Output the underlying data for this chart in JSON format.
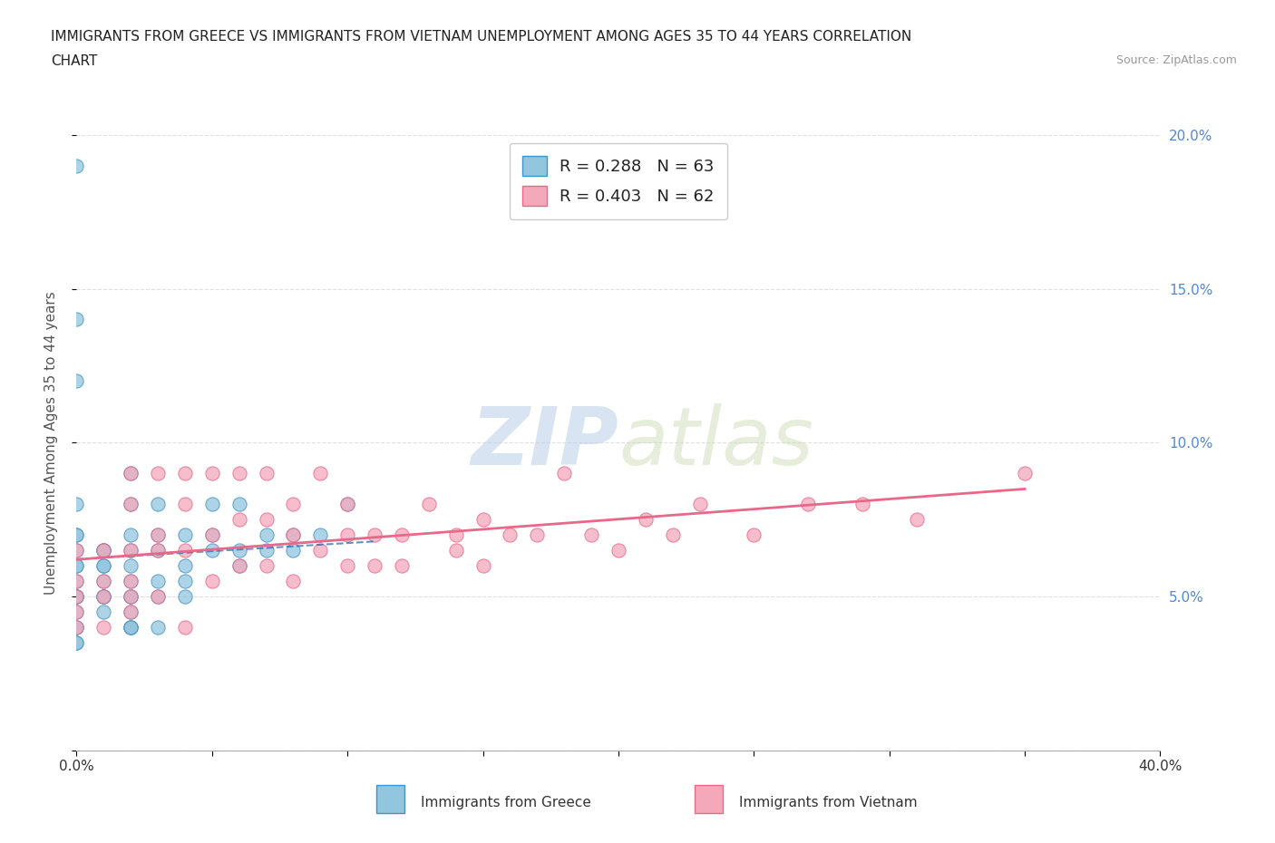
{
  "title_line1": "IMMIGRANTS FROM GREECE VS IMMIGRANTS FROM VIETNAM UNEMPLOYMENT AMONG AGES 35 TO 44 YEARS CORRELATION",
  "title_line2": "CHART",
  "source_text": "Source: ZipAtlas.com",
  "ylabel": "Unemployment Among Ages 35 to 44 years",
  "xlim": [
    0.0,
    0.4
  ],
  "ylim": [
    0.0,
    0.2
  ],
  "xticks": [
    0.0,
    0.05,
    0.1,
    0.15,
    0.2,
    0.25,
    0.3,
    0.35,
    0.4
  ],
  "yticks": [
    0.0,
    0.05,
    0.1,
    0.15,
    0.2
  ],
  "yticklabels_right": [
    "",
    "5.0%",
    "10.0%",
    "15.0%",
    "20.0%"
  ],
  "greece_color": "#92c5de",
  "greece_edge_color": "#4393c3",
  "vietnam_color": "#f4a9bb",
  "vietnam_edge_color": "#e8688a",
  "trend_greece_color": "#2166ac",
  "trend_vietnam_color": "#e8688a",
  "R_greece": 0.288,
  "N_greece": 63,
  "R_vietnam": 0.403,
  "N_vietnam": 62,
  "watermark": "ZIPatlas",
  "greece_x": [
    0.0,
    0.0,
    0.0,
    0.0,
    0.0,
    0.0,
    0.0,
    0.0,
    0.0,
    0.0,
    0.0,
    0.0,
    0.0,
    0.0,
    0.0,
    0.0,
    0.0,
    0.0,
    0.0,
    0.01,
    0.01,
    0.01,
    0.01,
    0.01,
    0.01,
    0.01,
    0.01,
    0.01,
    0.01,
    0.02,
    0.02,
    0.02,
    0.02,
    0.02,
    0.02,
    0.02,
    0.02,
    0.02,
    0.02,
    0.02,
    0.02,
    0.03,
    0.03,
    0.03,
    0.03,
    0.03,
    0.03,
    0.04,
    0.04,
    0.04,
    0.04,
    0.05,
    0.05,
    0.05,
    0.06,
    0.06,
    0.06,
    0.07,
    0.07,
    0.08,
    0.08,
    0.09,
    0.1
  ],
  "greece_y": [
    0.19,
    0.14,
    0.12,
    0.08,
    0.07,
    0.07,
    0.065,
    0.06,
    0.06,
    0.055,
    0.05,
    0.05,
    0.05,
    0.05,
    0.045,
    0.04,
    0.04,
    0.035,
    0.035,
    0.065,
    0.065,
    0.065,
    0.06,
    0.06,
    0.055,
    0.05,
    0.05,
    0.05,
    0.045,
    0.09,
    0.08,
    0.07,
    0.065,
    0.06,
    0.055,
    0.05,
    0.05,
    0.045,
    0.04,
    0.04,
    0.04,
    0.08,
    0.07,
    0.065,
    0.055,
    0.05,
    0.04,
    0.07,
    0.06,
    0.055,
    0.05,
    0.08,
    0.07,
    0.065,
    0.08,
    0.065,
    0.06,
    0.07,
    0.065,
    0.07,
    0.065,
    0.07,
    0.08
  ],
  "vietnam_x": [
    0.0,
    0.0,
    0.0,
    0.0,
    0.0,
    0.01,
    0.01,
    0.01,
    0.01,
    0.02,
    0.02,
    0.02,
    0.02,
    0.02,
    0.02,
    0.03,
    0.03,
    0.03,
    0.03,
    0.04,
    0.04,
    0.04,
    0.04,
    0.05,
    0.05,
    0.05,
    0.06,
    0.06,
    0.06,
    0.07,
    0.07,
    0.07,
    0.08,
    0.08,
    0.08,
    0.09,
    0.09,
    0.1,
    0.1,
    0.1,
    0.11,
    0.11,
    0.12,
    0.12,
    0.13,
    0.14,
    0.14,
    0.15,
    0.15,
    0.16,
    0.17,
    0.18,
    0.19,
    0.2,
    0.21,
    0.22,
    0.23,
    0.25,
    0.27,
    0.29,
    0.31,
    0.35
  ],
  "vietnam_y": [
    0.065,
    0.055,
    0.05,
    0.045,
    0.04,
    0.065,
    0.055,
    0.05,
    0.04,
    0.09,
    0.08,
    0.065,
    0.055,
    0.05,
    0.045,
    0.09,
    0.07,
    0.065,
    0.05,
    0.09,
    0.08,
    0.065,
    0.04,
    0.09,
    0.07,
    0.055,
    0.09,
    0.075,
    0.06,
    0.09,
    0.075,
    0.06,
    0.08,
    0.07,
    0.055,
    0.09,
    0.065,
    0.08,
    0.07,
    0.06,
    0.07,
    0.06,
    0.07,
    0.06,
    0.08,
    0.07,
    0.065,
    0.075,
    0.06,
    0.07,
    0.07,
    0.09,
    0.07,
    0.065,
    0.075,
    0.07,
    0.08,
    0.07,
    0.08,
    0.08,
    0.075,
    0.09
  ]
}
